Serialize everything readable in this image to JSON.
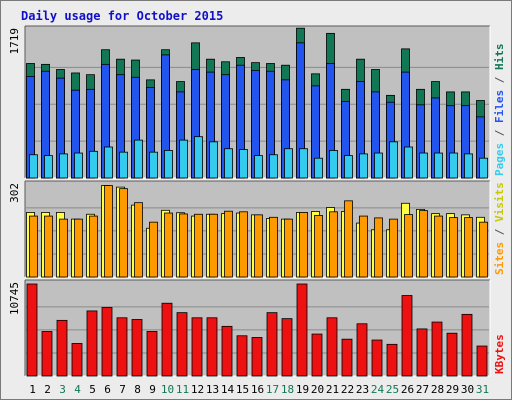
{
  "title": "Daily usage for October 2015",
  "colors": {
    "pages": "#33ccee",
    "files": "#2255ee",
    "hits": "#117755",
    "visits": "#ffff44",
    "sites": "#ff9900",
    "kbytes": "#ee1111",
    "separator": "#555555",
    "plot_bg": "#c0c0c0",
    "weekend_day": "#117755"
  },
  "chart_data": [
    {
      "type": "bar",
      "ymax_label": "1719",
      "ymax": 1719,
      "legend": {
        "pages": "Pages",
        "files": "Files",
        "hits": "Hits",
        "sep": "/"
      },
      "categories": [
        "1",
        "2",
        "3",
        "4",
        "5",
        "6",
        "7",
        "8",
        "9",
        "10",
        "11",
        "12",
        "13",
        "14",
        "15",
        "16",
        "17",
        "18",
        "19",
        "20",
        "21",
        "22",
        "23",
        "24",
        "25",
        "26",
        "27",
        "28",
        "29",
        "30",
        "31"
      ],
      "series": [
        {
          "name": "Hits",
          "values": [
            1330,
            1320,
            1260,
            1220,
            1200,
            1490,
            1380,
            1370,
            1140,
            1490,
            1120,
            1570,
            1380,
            1350,
            1400,
            1340,
            1330,
            1310,
            1740,
            1210,
            1680,
            1030,
            1380,
            1260,
            960,
            1500,
            1030,
            1120,
            1000,
            1000,
            900
          ]
        },
        {
          "name": "Files",
          "values": [
            1180,
            1240,
            1160,
            1020,
            1030,
            1320,
            1200,
            1170,
            1050,
            1430,
            1000,
            1260,
            1230,
            1200,
            1310,
            1250,
            1240,
            1140,
            1570,
            1070,
            1330,
            890,
            1120,
            1000,
            880,
            1230,
            850,
            930,
            840,
            840,
            710
          ]
        },
        {
          "name": "Pages",
          "values": [
            270,
            260,
            280,
            290,
            310,
            360,
            300,
            440,
            300,
            320,
            440,
            480,
            420,
            340,
            330,
            260,
            270,
            340,
            340,
            230,
            320,
            260,
            280,
            290,
            420,
            360,
            290,
            290,
            290,
            280,
            230
          ]
        }
      ]
    },
    {
      "type": "bar",
      "ymax_label": "302",
      "ymax": 302,
      "legend": {
        "sites": "Sites",
        "visits": "Visits",
        "sep": "/"
      },
      "categories": [
        "1",
        "2",
        "3",
        "4",
        "5",
        "6",
        "7",
        "8",
        "9",
        "10",
        "11",
        "12",
        "13",
        "14",
        "15",
        "16",
        "17",
        "18",
        "19",
        "20",
        "21",
        "22",
        "23",
        "24",
        "25",
        "26",
        "27",
        "28",
        "29",
        "30",
        "31"
      ],
      "series": [
        {
          "name": "Visits",
          "values": [
            212,
            212,
            212,
            190,
            206,
            300,
            295,
            236,
            160,
            219,
            211,
            200,
            206,
            208,
            210,
            204,
            192,
            190,
            212,
            215,
            228,
            215,
            177,
            155,
            155,
            242,
            222,
            208,
            208,
            204,
            196
          ]
        },
        {
          "name": "Sites",
          "values": [
            200,
            200,
            190,
            190,
            200,
            300,
            290,
            244,
            180,
            210,
            207,
            206,
            206,
            216,
            214,
            204,
            196,
            190,
            212,
            202,
            214,
            250,
            200,
            194,
            190,
            205,
            218,
            200,
            195,
            195,
            180
          ]
        }
      ]
    },
    {
      "type": "bar",
      "ymax_label": "10745",
      "ymax": 10745,
      "legend": {
        "kbytes": "KBytes"
      },
      "categories": [
        "1",
        "2",
        "3",
        "4",
        "5",
        "6",
        "7",
        "8",
        "9",
        "10",
        "11",
        "12",
        "13",
        "14",
        "15",
        "16",
        "17",
        "18",
        "19",
        "20",
        "21",
        "22",
        "23",
        "24",
        "25",
        "26",
        "27",
        "28",
        "29",
        "30",
        "31"
      ],
      "series": [
        {
          "name": "KBytes",
          "values": [
            10745,
            5200,
            6500,
            3800,
            7600,
            8000,
            6800,
            6600,
            5200,
            8500,
            7400,
            6800,
            6800,
            5800,
            4700,
            4500,
            7400,
            6700,
            10745,
            4900,
            6800,
            4300,
            6100,
            4200,
            3700,
            9400,
            5500,
            6300,
            5000,
            7200,
            3500
          ]
        }
      ]
    }
  ],
  "x_labels": [
    "1",
    "2",
    "3",
    "4",
    "5",
    "6",
    "7",
    "8",
    "9",
    "10",
    "11",
    "12",
    "13",
    "14",
    "15",
    "16",
    "17",
    "18",
    "19",
    "20",
    "21",
    "22",
    "23",
    "24",
    "25",
    "26",
    "27",
    "28",
    "29",
    "30",
    "31"
  ],
  "weekend_days": [
    "3",
    "4",
    "10",
    "11",
    "17",
    "18",
    "24",
    "25",
    "31"
  ]
}
